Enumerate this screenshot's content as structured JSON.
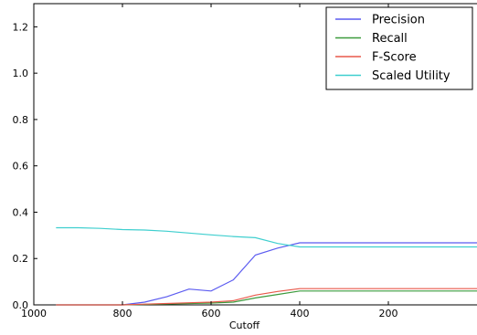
{
  "chart_data": {
    "type": "line",
    "title": "",
    "xlabel": "Cutoff",
    "ylabel": "",
    "xlim": [
      1000,
      0
    ],
    "ylim": [
      0,
      1.3
    ],
    "x_reversed": true,
    "grid": false,
    "legend_position": "top-right",
    "x_ticks": [
      1000,
      800,
      600,
      400,
      200
    ],
    "x_tick_labels": [
      "1000",
      "800",
      "600",
      "400",
      "200"
    ],
    "y_ticks": [
      0.0,
      0.2,
      0.4,
      0.6,
      0.8,
      1.0,
      1.2
    ],
    "y_tick_labels": [
      "0.0",
      "0.2",
      "0.4",
      "0.6",
      "0.8",
      "1.0",
      "1.2"
    ],
    "x": [
      950,
      900,
      850,
      800,
      750,
      700,
      650,
      600,
      550,
      500,
      450,
      400,
      350,
      300,
      250,
      200,
      150,
      100,
      50,
      0
    ],
    "series": [
      {
        "name": "Precision",
        "color": "#5b5bf0",
        "values": [
          0.0,
          0.0,
          0.0,
          0.0,
          0.012,
          0.035,
          0.068,
          0.06,
          0.108,
          0.215,
          0.245,
          0.268,
          0.268,
          0.268,
          0.268,
          0.268,
          0.268,
          0.268,
          0.268,
          0.268
        ]
      },
      {
        "name": "Recall",
        "color": "#3c9a3c",
        "values": [
          0.0,
          0.0,
          0.0,
          0.0,
          0.002,
          0.004,
          0.006,
          0.008,
          0.012,
          0.03,
          0.045,
          0.06,
          0.06,
          0.06,
          0.06,
          0.06,
          0.06,
          0.06,
          0.06,
          0.06
        ]
      },
      {
        "name": "F-Score",
        "color": "#e8584a",
        "values": [
          0.0,
          0.0,
          0.0,
          0.0,
          0.003,
          0.006,
          0.009,
          0.012,
          0.018,
          0.042,
          0.058,
          0.07,
          0.07,
          0.07,
          0.07,
          0.07,
          0.07,
          0.07,
          0.07,
          0.07
        ]
      },
      {
        "name": "Scaled Utility",
        "color": "#3fcfcf",
        "values": [
          0.333,
          0.333,
          0.33,
          0.325,
          0.323,
          0.318,
          0.31,
          0.302,
          0.295,
          0.29,
          0.265,
          0.25,
          0.25,
          0.25,
          0.25,
          0.25,
          0.25,
          0.25,
          0.25,
          0.25
        ]
      }
    ]
  }
}
